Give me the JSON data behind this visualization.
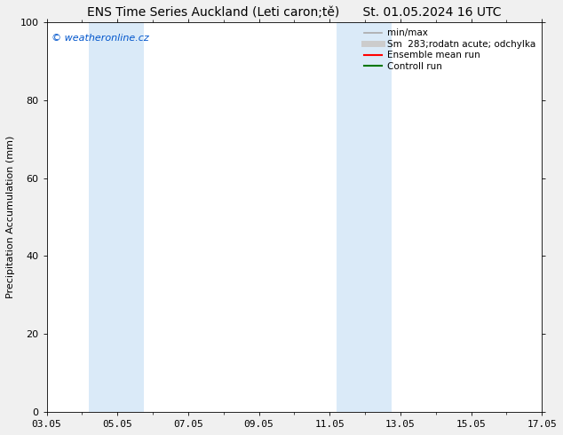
{
  "title": "ENS Time Series Auckland (Leti caron;tě)      St. 01.05.2024 16 UTC",
  "ylabel": "Precipitation Accumulation (mm)",
  "ylim": [
    0,
    100
  ],
  "yticks": [
    0,
    20,
    40,
    60,
    80,
    100
  ],
  "xticks_labels": [
    "03.05",
    "05.05",
    "07.05",
    "09.05",
    "11.05",
    "13.05",
    "15.05",
    "17.05"
  ],
  "xtick_values": [
    3,
    5,
    7,
    9,
    11,
    13,
    15,
    17
  ],
  "watermark": "© weatheronline.cz",
  "watermark_color": "#0055cc",
  "bg_color": "#f0f0f0",
  "plot_bg_color": "#ffffff",
  "shaded_bands": [
    {
      "x_start": 4.2,
      "x_end": 5.75,
      "color": "#daeaf8"
    },
    {
      "x_start": 11.2,
      "x_end": 12.75,
      "color": "#daeaf8"
    }
  ],
  "legend_items": [
    {
      "label": "min/max",
      "color": "#aaaaaa",
      "lw": 1.2,
      "style": "solid"
    },
    {
      "label": "Sm  283;rodatn acute; odchylka",
      "color": "#cccccc",
      "lw": 5,
      "style": "solid"
    },
    {
      "label": "Ensemble mean run",
      "color": "#ff0000",
      "lw": 1.5,
      "style": "solid"
    },
    {
      "label": "Controll run",
      "color": "#007700",
      "lw": 1.5,
      "style": "solid"
    }
  ],
  "font_size_title": 10,
  "font_size_legend": 7.5,
  "font_size_ticks": 8,
  "font_size_ylabel": 8,
  "font_size_watermark": 8
}
